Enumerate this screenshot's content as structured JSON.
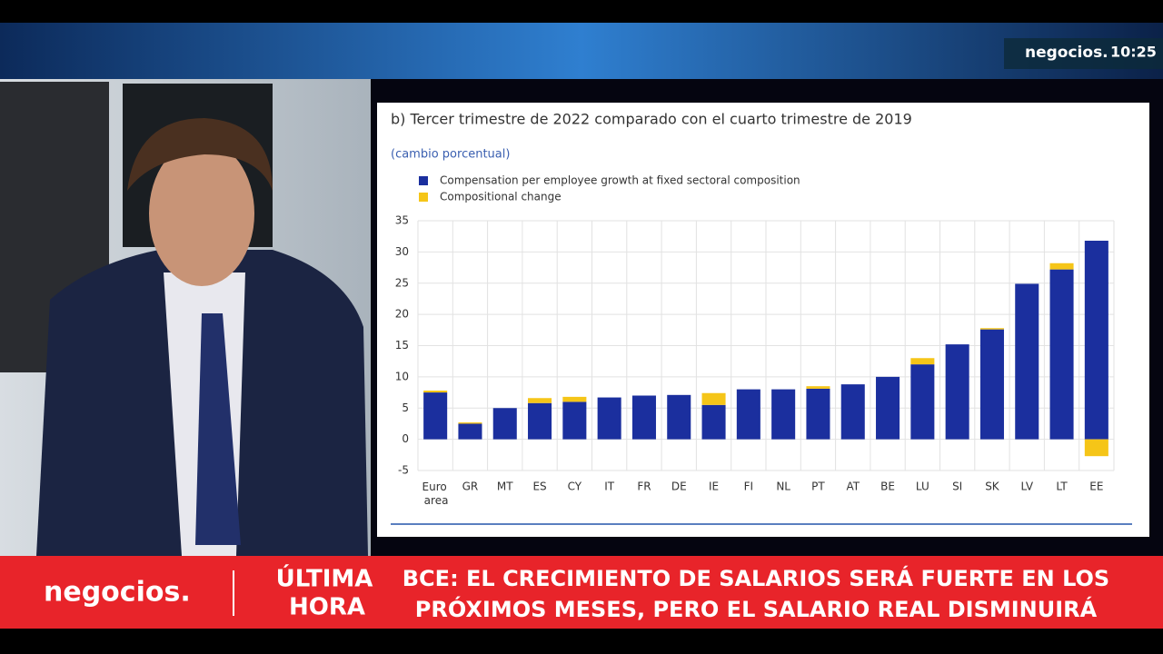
{
  "broadcast": {
    "channel": "negocios.",
    "clock": "10:25",
    "ticker_brand": "negocios.",
    "ticker_tag": [
      "ÚLTIMA",
      "HORA"
    ],
    "headline": [
      "BCE: EL CRECIMIENTO DE SALARIOS SERÁ FUERTE EN LOS",
      "PRÓXIMOS MESES, PERO EL SALARIO REAL DISMINUIRÁ"
    ]
  },
  "chart_data": {
    "type": "stacked-bar",
    "title": "b) Tercer trimestre de 2022 comparado con el cuarto trimestre de 2019",
    "subtitle": "(cambio porcentual)",
    "categories": [
      "Euro area",
      "GR",
      "MT",
      "ES",
      "CY",
      "IT",
      "FR",
      "DE",
      "IE",
      "FI",
      "NL",
      "PT",
      "AT",
      "BE",
      "LU",
      "SI",
      "SK",
      "LV",
      "LT",
      "EE"
    ],
    "series": [
      {
        "name": "Compensation per employee growth at fixed sectoral composition",
        "color": "#1b2f9e",
        "values": [
          7.5,
          2.5,
          5,
          5.8,
          6,
          6.7,
          7,
          7.1,
          5.5,
          8,
          8,
          8.1,
          8.8,
          10,
          12,
          15.2,
          17.6,
          24.9,
          27.2,
          31.8
        ]
      },
      {
        "name": "Compositional change",
        "color": "#f5c518",
        "values": [
          0.3,
          0.2,
          0,
          0.8,
          0.8,
          0,
          0,
          0,
          1.9,
          0,
          0,
          0.4,
          0,
          0,
          1,
          0,
          0.2,
          0,
          1,
          -2.7
        ]
      }
    ],
    "ylim": [
      -5,
      35
    ],
    "yticks": [
      -5,
      0,
      5,
      10,
      15,
      20,
      25,
      30,
      35
    ],
    "grid": true
  }
}
